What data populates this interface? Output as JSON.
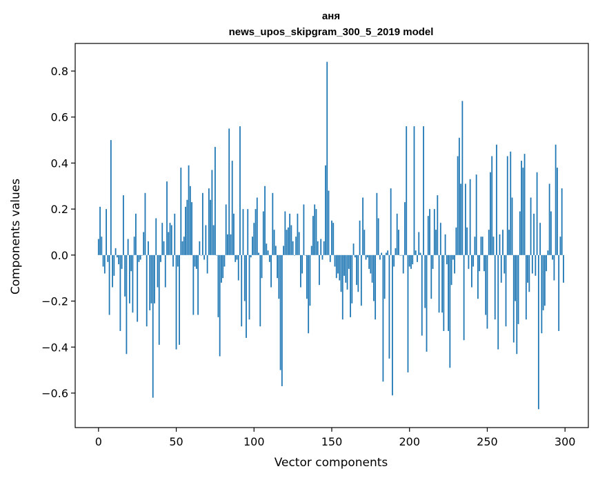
{
  "chart_data": {
    "type": "bar",
    "title": "аня",
    "subtitle": "news_upos_skipgram_300_5_2019 model",
    "xlabel": "Vector components",
    "ylabel": "Components values",
    "xlim": [
      -15,
      315
    ],
    "ylim": [
      -0.75,
      0.92
    ],
    "xticks": [
      0,
      50,
      100,
      150,
      200,
      250,
      300
    ],
    "yticks": [
      -0.6,
      -0.4,
      -0.2,
      0.0,
      0.2,
      0.4,
      0.6,
      0.8
    ],
    "ytick_labels": [
      "−0.6",
      "−0.4",
      "−0.2",
      "0.0",
      "0.2",
      "0.4",
      "0.6",
      "0.8"
    ],
    "grid": false,
    "bar_color": "#1f77b4",
    "x": "index 0..299",
    "values": [
      0.07,
      0.21,
      0.08,
      -0.05,
      -0.08,
      0.2,
      -0.03,
      -0.26,
      0.5,
      -0.14,
      -0.09,
      0.03,
      -0.01,
      -0.04,
      -0.33,
      -0.06,
      0.26,
      -0.18,
      -0.43,
      0.07,
      -0.21,
      -0.07,
      -0.25,
      0.08,
      0.18,
      -0.29,
      -0.03,
      -0.02,
      0.0,
      0.1,
      0.27,
      -0.31,
      0.06,
      -0.24,
      -0.21,
      -0.62,
      -0.21,
      0.16,
      -0.14,
      -0.39,
      -0.03,
      0.14,
      0.06,
      -0.14,
      0.32,
      0.1,
      0.14,
      0.13,
      -0.05,
      0.18,
      -0.41,
      -0.05,
      -0.39,
      0.38,
      0.06,
      0.08,
      0.21,
      0.24,
      0.39,
      0.3,
      0.23,
      -0.26,
      -0.05,
      -0.06,
      -0.26,
      0.06,
      0.0,
      0.27,
      -0.02,
      0.13,
      -0.08,
      0.29,
      0.24,
      0.37,
      0.13,
      0.47,
      0.0,
      -0.27,
      -0.44,
      -0.12,
      -0.1,
      -0.05,
      0.22,
      0.09,
      0.55,
      0.09,
      0.41,
      0.18,
      -0.03,
      -0.02,
      -0.11,
      0.56,
      -0.31,
      0.2,
      -0.2,
      -0.36,
      0.2,
      -0.28,
      -0.01,
      0.08,
      0.14,
      0.2,
      0.25,
      0.01,
      -0.31,
      -0.1,
      0.19,
      0.3,
      0.05,
      0.02,
      -0.03,
      -0.14,
      0.27,
      0.11,
      0.04,
      -0.1,
      -0.19,
      -0.5,
      -0.57,
      0.04,
      0.19,
      0.11,
      0.12,
      0.18,
      0.13,
      0.06,
      0.0,
      0.08,
      0.18,
      0.1,
      -0.14,
      -0.08,
      0.22,
      0.0,
      -0.19,
      -0.34,
      -0.22,
      0.04,
      0.17,
      0.22,
      0.2,
      0.06,
      -0.13,
      0.07,
      -0.02,
      0.06,
      0.39,
      0.84,
      0.28,
      -0.03,
      0.15,
      0.14,
      -0.05,
      -0.1,
      -0.08,
      -0.11,
      -0.16,
      -0.28,
      -0.09,
      -0.12,
      -0.15,
      -0.06,
      -0.27,
      -0.21,
      0.05,
      -0.01,
      -0.13,
      -0.16,
      0.15,
      -0.22,
      0.25,
      0.11,
      -0.02,
      -0.01,
      -0.06,
      -0.08,
      -0.12,
      -0.2,
      -0.28,
      0.27,
      0.16,
      -0.02,
      0.01,
      -0.55,
      -0.19,
      0.01,
      0.02,
      -0.45,
      0.29,
      -0.61,
      -0.05,
      0.03,
      0.18,
      0.11,
      0.0,
      0.0,
      -0.08,
      0.23,
      0.56,
      -0.51,
      -0.05,
      -0.06,
      -0.04,
      0.56,
      0.02,
      -0.03,
      0.1,
      0.01,
      -0.35,
      0.56,
      -0.23,
      -0.42,
      0.17,
      0.2,
      -0.19,
      -0.06,
      0.2,
      0.11,
      0.26,
      -0.25,
      0.14,
      -0.25,
      -0.33,
      0.09,
      -0.04,
      -0.33,
      -0.49,
      -0.13,
      -0.02,
      -0.08,
      0.12,
      0.43,
      0.51,
      0.31,
      0.67,
      -0.37,
      0.31,
      0.12,
      -0.06,
      0.33,
      -0.14,
      -0.05,
      0.08,
      0.35,
      -0.19,
      -0.07,
      0.08,
      0.08,
      -0.07,
      -0.26,
      -0.32,
      0.11,
      0.36,
      0.43,
      0.08,
      -0.28,
      0.48,
      -0.41,
      0.09,
      -0.12,
      0.11,
      -0.08,
      -0.31,
      0.43,
      0.11,
      0.45,
      0.25,
      -0.38,
      -0.2,
      -0.43,
      -0.3,
      0.19,
      0.41,
      0.38,
      0.44,
      -0.28,
      -0.12,
      -0.16,
      0.25,
      -0.08,
      0.18,
      -0.09,
      0.36,
      -0.67,
      0.14,
      -0.34,
      -0.24,
      -0.22,
      -0.07,
      0.02,
      0.31,
      0.19,
      -0.02,
      -0.11,
      0.48,
      0.38,
      -0.33,
      0.08,
      0.29,
      -0.12
    ]
  }
}
